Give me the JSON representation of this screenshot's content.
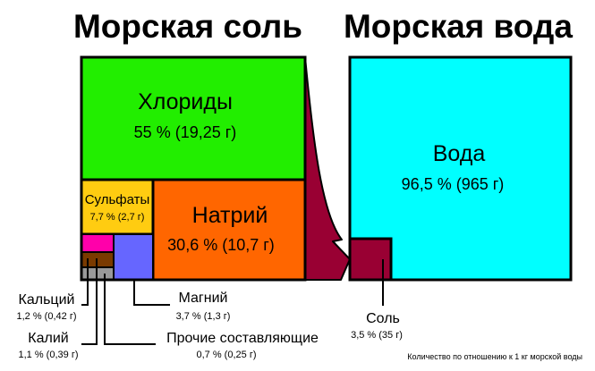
{
  "titles": {
    "sea_salt": "Морская соль",
    "sea_water": "Морская вода"
  },
  "salt": {
    "chlorides": {
      "label": "Хлориды",
      "value": "55 % (19,25 г)",
      "color": "#22ee00"
    },
    "sulfates": {
      "label": "Сульфаты",
      "value": "7,7 % (2,7 г)",
      "color": "#ffcc11"
    },
    "sodium": {
      "label": "Натрий",
      "value": "30,6 % (10,7 г)",
      "color": "#ff6600"
    },
    "calcium": {
      "label": "Кальций",
      "value": "1,2 % (0,42 г)",
      "color": "#ff00aa"
    },
    "potassium": {
      "label": "Калий",
      "value": "1,1 % (0,39 г)",
      "color": "#7a3a00"
    },
    "other": {
      "label": "Прочие составляющие",
      "value": "0,7 % (0,25 г)",
      "color": "#999999"
    },
    "magnesium": {
      "label": "Магний",
      "value": "3,7 % (1,3 г)",
      "color": "#6666ff"
    }
  },
  "water": {
    "water": {
      "label": "Вода",
      "value": "96,5 % (965 г)",
      "color": "#00ffff"
    },
    "salt": {
      "label": "Соль",
      "value": "3,5 % (35 г)",
      "color": "#990033"
    }
  },
  "footnote": "Количество по отношению к 1 кг морской воды"
}
